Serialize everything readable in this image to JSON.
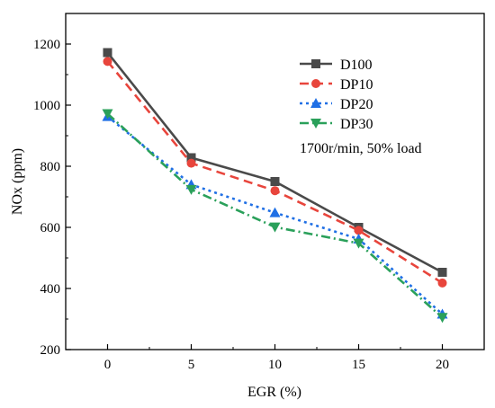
{
  "chart_data": {
    "type": "line",
    "xlabel": "EGR (%)",
    "ylabel": "NOx (ppm)",
    "x": [
      0,
      5,
      10,
      15,
      20
    ],
    "x_ticks": [
      "0",
      "5",
      "10",
      "15",
      "20"
    ],
    "y_ticks": [
      "200",
      "400",
      "600",
      "800",
      "1000",
      "1200"
    ],
    "xlim": [
      -2.5,
      22.5
    ],
    "ylim": [
      200,
      1300
    ],
    "grid": false,
    "legend_position": "top-right",
    "annotation": "1700r/min, 50% load",
    "series": [
      {
        "name": "D100",
        "color": "#4a4a4a",
        "marker": "square",
        "line_style": "solid",
        "values": [
          1172,
          828,
          750,
          600,
          453
        ]
      },
      {
        "name": "DP10",
        "color": "#e8453c",
        "marker": "circle",
        "line_style": "dashed",
        "values": [
          1143,
          810,
          720,
          590,
          418
        ]
      },
      {
        "name": "DP20",
        "color": "#1f6fe5",
        "marker": "triangle-up",
        "line_style": "dotted",
        "values": [
          963,
          740,
          648,
          562,
          316
        ]
      },
      {
        "name": "DP30",
        "color": "#2aa05a",
        "marker": "triangle-down",
        "line_style": "dash-dot",
        "values": [
          972,
          724,
          601,
          548,
          305
        ]
      }
    ]
  }
}
